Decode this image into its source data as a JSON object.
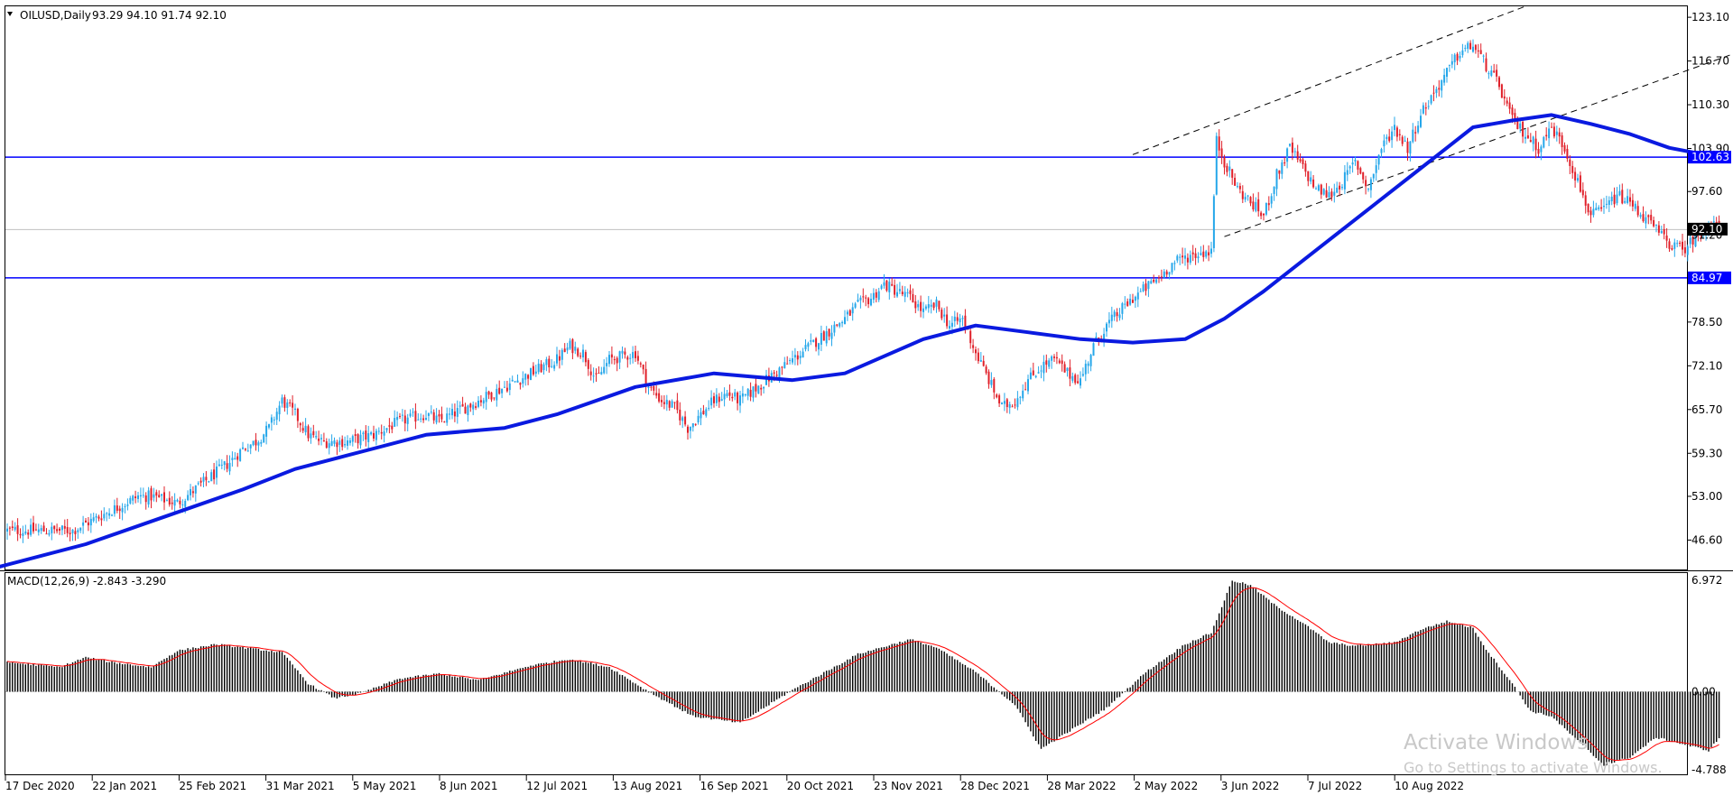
{
  "chart_data": {
    "type": "candlestick",
    "header": {
      "symbol_timeframe": "OILUSD,Daily",
      "ohlc": "93.29 94.10 91.74 92.10",
      "open": 93.29,
      "high": 94.1,
      "low": 91.74,
      "close": 92.1
    },
    "price_axis": {
      "ylim": [
        42.3,
        124.7
      ],
      "ticks": [
        "123.10",
        "116.70",
        "110.30",
        "103.90",
        "97.60",
        "91.20",
        "84.90",
        "78.50",
        "72.10",
        "65.70",
        "59.30",
        "53.00",
        "46.60"
      ],
      "tick_values": [
        123.1,
        116.7,
        110.3,
        103.9,
        97.6,
        91.2,
        84.9,
        78.5,
        72.1,
        65.7,
        59.3,
        53.0,
        46.6
      ]
    },
    "time_axis": {
      "labels": [
        "17 Dec 2020",
        "22 Jan 2021",
        "25 Feb 2021",
        "31 Mar 2021",
        "5 May 2021",
        "8 Jun 2021",
        "12 Jul 2021",
        "13 Aug 2021",
        "16 Sep 2021",
        "20 Oct 2021",
        "23 Nov 2021",
        "28 Dec 2021",
        "28 Mar 2022",
        "2 May 2022",
        "3 Jun 2022",
        "7 Jul 2022",
        "10 Aug 2022"
      ]
    },
    "horizontal_levels": [
      {
        "value": 102.63,
        "label": "102.63",
        "color": "#0000ff"
      },
      {
        "value": 84.97,
        "label": "84.97",
        "color": "#0000ff"
      }
    ],
    "current_price": {
      "value": 92.1,
      "label": "92.10"
    },
    "moving_average_color": "#0a1ae0",
    "bull_color": "#26a7ea",
    "bear_color": "#e0202a",
    "price_path": [
      [
        0,
        48
      ],
      [
        25,
        48
      ],
      [
        40,
        51
      ],
      [
        50,
        53
      ],
      [
        55,
        53
      ],
      [
        65,
        52
      ],
      [
        75,
        55
      ],
      [
        85,
        58
      ],
      [
        90,
        60
      ],
      [
        95,
        61
      ],
      [
        100,
        63
      ],
      [
        105,
        67
      ],
      [
        110,
        65
      ],
      [
        115,
        62
      ],
      [
        120,
        61
      ],
      [
        130,
        61
      ],
      [
        140,
        62
      ],
      [
        150,
        64
      ],
      [
        160,
        65
      ],
      [
        165,
        64
      ],
      [
        170,
        65
      ],
      [
        180,
        67
      ],
      [
        190,
        69
      ],
      [
        200,
        71
      ],
      [
        210,
        73
      ],
      [
        215,
        75
      ],
      [
        220,
        74
      ],
      [
        225,
        70
      ],
      [
        230,
        73
      ],
      [
        240,
        74
      ],
      [
        245,
        69
      ],
      [
        250,
        67
      ],
      [
        255,
        66
      ],
      [
        260,
        63
      ],
      [
        270,
        67
      ],
      [
        275,
        68
      ],
      [
        280,
        67
      ],
      [
        290,
        70
      ],
      [
        300,
        73
      ],
      [
        310,
        76
      ],
      [
        320,
        79
      ],
      [
        325,
        81
      ],
      [
        330,
        82
      ],
      [
        335,
        84
      ],
      [
        340,
        83
      ],
      [
        345,
        82
      ],
      [
        350,
        80
      ],
      [
        355,
        81
      ],
      [
        360,
        78
      ],
      [
        365,
        79
      ],
      [
        370,
        74
      ],
      [
        375,
        70
      ],
      [
        380,
        66
      ],
      [
        385,
        67
      ],
      [
        390,
        70
      ],
      [
        395,
        72
      ],
      [
        400,
        73
      ],
      [
        405,
        71
      ],
      [
        410,
        70
      ],
      [
        415,
        75
      ],
      [
        420,
        78
      ],
      [
        430,
        82
      ],
      [
        440,
        85
      ],
      [
        445,
        87
      ],
      [
        450,
        88
      ],
      [
        455,
        88.5
      ],
      [
        460,
        89
      ],
      [
        462,
        105
      ],
      [
        465,
        102
      ],
      [
        470,
        98
      ],
      [
        475,
        96
      ],
      [
        480,
        94
      ],
      [
        485,
        100
      ],
      [
        490,
        104
      ],
      [
        495,
        101
      ],
      [
        500,
        98
      ],
      [
        505,
        97
      ],
      [
        510,
        99
      ],
      [
        515,
        102
      ],
      [
        520,
        98
      ],
      [
        525,
        104
      ],
      [
        530,
        107
      ],
      [
        535,
        104
      ],
      [
        540,
        109
      ],
      [
        545,
        112
      ],
      [
        550,
        115
      ],
      [
        555,
        118
      ],
      [
        560,
        119
      ],
      [
        565,
        116
      ],
      [
        570,
        113
      ],
      [
        575,
        108
      ],
      [
        580,
        106
      ],
      [
        585,
        104
      ],
      [
        590,
        107
      ],
      [
        595,
        104
      ],
      [
        600,
        99
      ],
      [
        605,
        94
      ],
      [
        610,
        95
      ],
      [
        615,
        97
      ],
      [
        620,
        96
      ],
      [
        625,
        94
      ],
      [
        630,
        92
      ],
      [
        635,
        90
      ],
      [
        640,
        89
      ],
      [
        645,
        91
      ],
      [
        650,
        93
      ],
      [
        654,
        92.1
      ]
    ],
    "moving_average": [
      [
        -10,
        42
      ],
      [
        30,
        46
      ],
      [
        60,
        50
      ],
      [
        90,
        54
      ],
      [
        110,
        57
      ],
      [
        140,
        60
      ],
      [
        160,
        62
      ],
      [
        190,
        63
      ],
      [
        210,
        65
      ],
      [
        240,
        69
      ],
      [
        270,
        71
      ],
      [
        300,
        70
      ],
      [
        320,
        71
      ],
      [
        350,
        76
      ],
      [
        370,
        78
      ],
      [
        390,
        77
      ],
      [
        410,
        76
      ],
      [
        430,
        75.5
      ],
      [
        450,
        76
      ],
      [
        465,
        79
      ],
      [
        480,
        83
      ],
      [
        500,
        89
      ],
      [
        520,
        95
      ],
      [
        540,
        101
      ],
      [
        550,
        104
      ],
      [
        560,
        107
      ],
      [
        575,
        108
      ],
      [
        590,
        108.8
      ],
      [
        605,
        107.5
      ],
      [
        620,
        106
      ],
      [
        635,
        104
      ],
      [
        654,
        102.6
      ]
    ],
    "channel_lines": [
      {
        "from": [
          430,
          103
        ],
        "to": [
          580,
          124.7
        ]
      },
      {
        "from": [
          465,
          91
        ],
        "to": [
          710,
          124.7
        ]
      }
    ],
    "macd": {
      "label": "MACD(12,26,9) -2.843 -3.290",
      "params": "12,26,9",
      "main": -2.843,
      "signal": -3.29,
      "ylim": [
        -5.05,
        7.25
      ],
      "ticks": [
        "6.972",
        "0.00",
        "-4.788"
      ],
      "tick_values": [
        6.972,
        0,
        -4.788
      ],
      "histogram_color": "#000000",
      "signal_color": "#ff0000",
      "path": [
        [
          0,
          1.8
        ],
        [
          20,
          1.5
        ],
        [
          30,
          2.1
        ],
        [
          40,
          1.8
        ],
        [
          55,
          1.5
        ],
        [
          65,
          2.5
        ],
        [
          80,
          2.9
        ],
        [
          95,
          2.6
        ],
        [
          105,
          2.4
        ],
        [
          115,
          0.5
        ],
        [
          125,
          -0.4
        ],
        [
          135,
          -0.1
        ],
        [
          150,
          0.8
        ],
        [
          165,
          1.1
        ],
        [
          180,
          0.7
        ],
        [
          200,
          1.6
        ],
        [
          215,
          2.0
        ],
        [
          230,
          1.5
        ],
        [
          245,
          0.0
        ],
        [
          262,
          -1.5
        ],
        [
          280,
          -1.9
        ],
        [
          300,
          0.1
        ],
        [
          325,
          2.3
        ],
        [
          345,
          3.2
        ],
        [
          355,
          2.7
        ],
        [
          370,
          1.2
        ],
        [
          385,
          -0.8
        ],
        [
          395,
          -3.5
        ],
        [
          405,
          -2.5
        ],
        [
          420,
          -1.0
        ],
        [
          435,
          1.2
        ],
        [
          450,
          2.9
        ],
        [
          460,
          3.6
        ],
        [
          468,
          6.8
        ],
        [
          475,
          6.5
        ],
        [
          485,
          5.2
        ],
        [
          495,
          4.2
        ],
        [
          505,
          3.0
        ],
        [
          515,
          2.8
        ],
        [
          530,
          3.0
        ],
        [
          540,
          3.8
        ],
        [
          550,
          4.3
        ],
        [
          560,
          3.9
        ],
        [
          565,
          2.6
        ],
        [
          575,
          0.5
        ],
        [
          582,
          -1.2
        ],
        [
          590,
          -1.5
        ],
        [
          600,
          -3.0
        ],
        [
          610,
          -4.5
        ],
        [
          620,
          -4.0
        ],
        [
          630,
          -2.8
        ],
        [
          640,
          -3.2
        ],
        [
          650,
          -3.6
        ],
        [
          654,
          -2.843
        ]
      ]
    },
    "watermark": {
      "title": "Activate Windows",
      "subtitle": "Go to Settings to activate Windows."
    }
  }
}
